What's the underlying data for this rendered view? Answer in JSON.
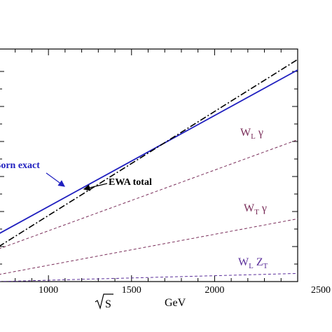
{
  "chart_data": {
    "type": "line",
    "title": "",
    "xlabel": {
      "symbol": "S",
      "unit": "GeV"
    },
    "ylabel": "",
    "xlim": [
      700,
      2500
    ],
    "ylim": [
      0,
      1
    ],
    "x_ticks": [
      1000,
      1500,
      2000,
      2500
    ],
    "grid": false,
    "series": [
      {
        "key": "born",
        "name": "Born exact",
        "color": "#1f1fbf",
        "style": "solid",
        "x": [
          700,
          2500
        ],
        "y": [
          0.205,
          0.91
        ]
      },
      {
        "key": "ewa",
        "name": "EWA total",
        "color": "#000000",
        "style": "dashdot",
        "x": [
          700,
          2500
        ],
        "y": [
          0.15,
          0.955
        ]
      },
      {
        "key": "wlg",
        "color": "#7a2e5a",
        "style": "dashed",
        "x": [
          700,
          2500
        ],
        "y": [
          0.14,
          0.61
        ]
      },
      {
        "key": "wtg",
        "color": "#7a2e5a",
        "style": "dashed",
        "x": [
          700,
          2500
        ],
        "y": [
          0.03,
          0.27
        ]
      },
      {
        "key": "wlzt",
        "color": "#5a2e9a",
        "style": "dashed",
        "x": [
          700,
          2500
        ],
        "y": [
          0.0,
          0.035
        ]
      }
    ],
    "labels": {
      "born": "Born exact",
      "ewa": "EWA total",
      "wlg": {
        "main": "W",
        "sub": "L",
        "tail": " γ"
      },
      "wtg": {
        "main": "W",
        "sub": "T",
        "tail": " γ"
      },
      "wlzt": {
        "main": "W",
        "sub": "L",
        "mid": " Z",
        "sub2": "T"
      }
    }
  }
}
